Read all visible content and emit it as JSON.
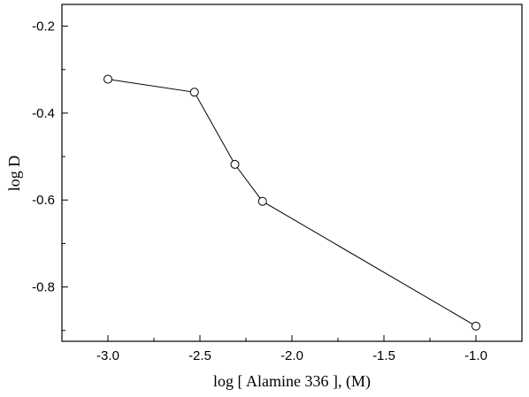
{
  "chart_data": {
    "type": "line",
    "xlabel": "log [ Alamine 336 ], (M)",
    "ylabel": "log D",
    "xlim": [
      -3.25,
      -0.75
    ],
    "ylim": [
      -0.925,
      -0.15
    ],
    "x_ticks": [
      -3.0,
      -2.5,
      -2.0,
      -1.5,
      -1.0
    ],
    "x_tick_labels": [
      "-3.0",
      "-2.5",
      "-2.0",
      "-1.5",
      "-1.0"
    ],
    "y_ticks": [
      -0.8,
      -0.6,
      -0.4,
      -0.2
    ],
    "y_tick_labels": [
      "-0.8",
      "-0.6",
      "-0.4",
      "-0.2"
    ],
    "grid": false,
    "series": [
      {
        "marker": "open-circle",
        "x": [
          -3.0,
          -2.53,
          -2.31,
          -2.16,
          -1.0
        ],
        "y": [
          -0.322,
          -0.352,
          -0.518,
          -0.603,
          -0.89
        ]
      }
    ]
  }
}
